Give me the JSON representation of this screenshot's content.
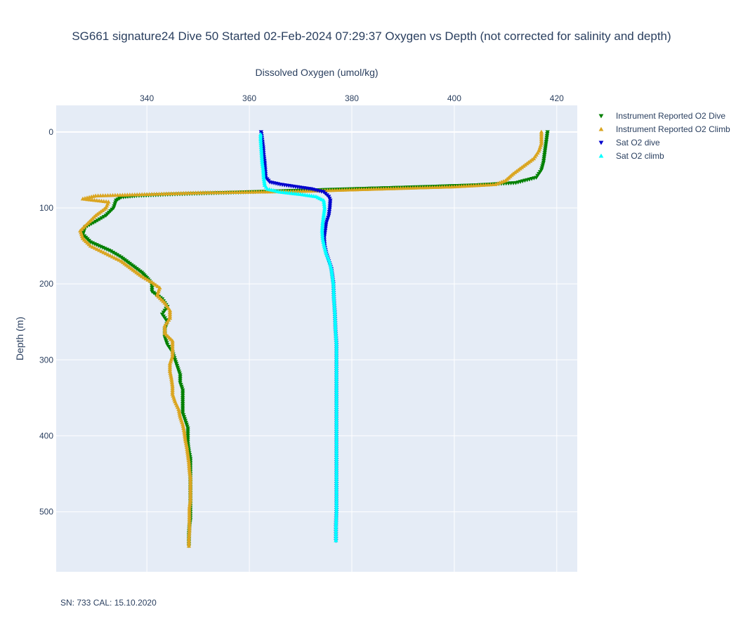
{
  "chart_data": {
    "type": "scatter",
    "title": "SG661 signature24 Dive 50 Started 02-Feb-2024 07:29:37  Oxygen vs Depth (not corrected for salinity and depth)",
    "xlabel": "Dissolved Oxygen (umol/kg)",
    "ylabel": "Depth (m)",
    "xlim": [
      322.3,
      424.0
    ],
    "ylim": [
      579,
      -35
    ],
    "x_axis_position": "top",
    "y_reversed": true,
    "grid": true,
    "x_ticks": [
      340,
      360,
      380,
      400,
      420
    ],
    "y_ticks": [
      0,
      100,
      200,
      300,
      400,
      500
    ],
    "legend_position": "right",
    "series": [
      {
        "name": "Instrument Reported O2 Dive",
        "marker": "triangle-down",
        "color": "#008000",
        "points": [
          [
            418.2,
            0
          ],
          [
            418,
            10
          ],
          [
            417.8,
            20
          ],
          [
            417.6,
            30
          ],
          [
            417.4,
            40
          ],
          [
            417,
            50
          ],
          [
            416,
            60
          ],
          [
            412,
            67
          ],
          [
            404,
            70
          ],
          [
            395,
            72
          ],
          [
            385,
            74
          ],
          [
            375,
            76
          ],
          [
            365,
            78
          ],
          [
            355,
            80
          ],
          [
            345,
            82
          ],
          [
            338,
            84
          ],
          [
            335,
            86
          ],
          [
            334,
            90
          ],
          [
            333.5,
            100
          ],
          [
            332,
            110
          ],
          [
            330,
            118
          ],
          [
            328,
            125
          ],
          [
            327.5,
            135
          ],
          [
            329,
            145
          ],
          [
            333,
            157
          ],
          [
            335,
            165
          ],
          [
            337,
            175
          ],
          [
            339,
            185
          ],
          [
            340,
            192
          ],
          [
            341,
            200
          ],
          [
            341,
            210
          ],
          [
            343,
            220
          ],
          [
            344,
            230
          ],
          [
            343,
            240
          ],
          [
            344,
            250
          ],
          [
            343.5,
            260
          ],
          [
            343.5,
            270
          ],
          [
            344,
            280
          ],
          [
            345,
            290
          ],
          [
            345.5,
            300
          ],
          [
            346,
            310
          ],
          [
            346.5,
            320
          ],
          [
            346.5,
            330
          ],
          [
            347,
            340
          ],
          [
            347,
            350
          ],
          [
            347,
            360
          ],
          [
            347,
            370
          ],
          [
            347.5,
            380
          ],
          [
            348,
            390
          ],
          [
            348,
            400
          ],
          [
            348,
            410
          ],
          [
            348.2,
            420
          ],
          [
            348.5,
            430
          ],
          [
            348.5,
            440
          ],
          [
            348.5,
            450
          ],
          [
            348.5,
            460
          ],
          [
            348.5,
            470
          ],
          [
            348.5,
            480
          ],
          [
            348.5,
            490
          ],
          [
            348.5,
            500
          ],
          [
            348.5,
            510
          ],
          [
            348.3,
            520
          ],
          [
            348.2,
            530
          ],
          [
            348.2,
            540
          ],
          [
            348.2,
            545
          ]
        ]
      },
      {
        "name": "Instrument Reported O2 Climb",
        "marker": "triangle-up",
        "color": "#daa520",
        "points": [
          [
            348.2,
            545
          ],
          [
            348.2,
            535
          ],
          [
            348.3,
            525
          ],
          [
            348.3,
            515
          ],
          [
            348.3,
            505
          ],
          [
            348.3,
            495
          ],
          [
            348.5,
            485
          ],
          [
            348.5,
            475
          ],
          [
            348.5,
            465
          ],
          [
            348.5,
            455
          ],
          [
            348.3,
            445
          ],
          [
            348.2,
            435
          ],
          [
            348,
            425
          ],
          [
            347.8,
            415
          ],
          [
            347.5,
            405
          ],
          [
            347.3,
            395
          ],
          [
            347,
            385
          ],
          [
            346.5,
            375
          ],
          [
            346.2,
            365
          ],
          [
            345.5,
            355
          ],
          [
            345,
            345
          ],
          [
            345,
            335
          ],
          [
            344.8,
            325
          ],
          [
            344.5,
            315
          ],
          [
            344.5,
            305
          ],
          [
            345,
            295
          ],
          [
            345,
            285
          ],
          [
            345,
            275
          ],
          [
            343.5,
            265
          ],
          [
            343.5,
            255
          ],
          [
            344.5,
            245
          ],
          [
            344.5,
            235
          ],
          [
            343.5,
            225
          ],
          [
            342,
            215
          ],
          [
            342.5,
            205
          ],
          [
            341,
            198
          ],
          [
            339,
            190
          ],
          [
            337,
            180
          ],
          [
            335,
            170
          ],
          [
            332,
            160
          ],
          [
            329,
            150
          ],
          [
            327.5,
            140
          ],
          [
            327,
            130
          ],
          [
            328.5,
            120
          ],
          [
            330,
            110
          ],
          [
            332,
            100
          ],
          [
            332.5,
            92
          ],
          [
            327.5,
            88
          ],
          [
            330,
            84
          ],
          [
            340,
            82
          ],
          [
            350,
            80
          ],
          [
            360,
            79
          ],
          [
            370,
            78
          ],
          [
            380,
            76
          ],
          [
            390,
            74
          ],
          [
            400,
            72
          ],
          [
            408,
            69
          ],
          [
            410,
            64
          ],
          [
            411.5,
            55
          ],
          [
            413.5,
            45
          ],
          [
            415.5,
            35
          ],
          [
            416.5,
            25
          ],
          [
            417,
            15
          ],
          [
            417,
            5
          ],
          [
            417,
            0
          ]
        ]
      },
      {
        "name": "Sat O2 dive",
        "marker": "triangle-down",
        "color": "#0000cd",
        "points": [
          [
            362.3,
            0
          ],
          [
            362.5,
            10
          ],
          [
            362.7,
            20
          ],
          [
            362.8,
            30
          ],
          [
            363,
            40
          ],
          [
            363.1,
            50
          ],
          [
            363.2,
            60
          ],
          [
            364,
            66
          ],
          [
            366,
            69
          ],
          [
            369,
            72
          ],
          [
            372,
            75
          ],
          [
            374.5,
            79
          ],
          [
            375.5,
            85
          ],
          [
            375.8,
            90
          ],
          [
            375.7,
            100
          ],
          [
            375.5,
            110
          ],
          [
            375,
            120
          ],
          [
            374.8,
            130
          ],
          [
            374.6,
            140
          ],
          [
            374.7,
            150
          ],
          [
            375,
            160
          ],
          [
            375.5,
            170
          ],
          [
            376,
            180
          ],
          [
            376.2,
            190
          ],
          [
            376.4,
            200
          ],
          [
            376.5,
            220
          ],
          [
            376.7,
            240
          ],
          [
            376.8,
            260
          ],
          [
            377,
            280
          ],
          [
            377,
            300
          ],
          [
            377,
            320
          ],
          [
            377,
            340
          ],
          [
            377,
            360
          ],
          [
            377,
            380
          ],
          [
            377,
            400
          ],
          [
            377,
            420
          ],
          [
            377,
            440
          ],
          [
            377,
            460
          ],
          [
            377,
            480
          ],
          [
            377,
            500
          ],
          [
            376.9,
            520
          ],
          [
            376.9,
            538
          ]
        ]
      },
      {
        "name": "Sat O2 climb",
        "marker": "triangle-up",
        "color": "#00ffff",
        "points": [
          [
            376.9,
            538
          ],
          [
            376.9,
            520
          ],
          [
            377,
            500
          ],
          [
            377,
            480
          ],
          [
            377,
            460
          ],
          [
            377,
            440
          ],
          [
            377,
            420
          ],
          [
            377,
            400
          ],
          [
            377,
            380
          ],
          [
            377,
            360
          ],
          [
            377,
            340
          ],
          [
            377,
            320
          ],
          [
            377,
            300
          ],
          [
            377,
            280
          ],
          [
            376.8,
            260
          ],
          [
            376.7,
            240
          ],
          [
            376.5,
            220
          ],
          [
            376.4,
            200
          ],
          [
            376.2,
            190
          ],
          [
            376,
            180
          ],
          [
            375.6,
            170
          ],
          [
            375,
            160
          ],
          [
            374.6,
            150
          ],
          [
            374.3,
            140
          ],
          [
            374.2,
            130
          ],
          [
            374.3,
            120
          ],
          [
            374.5,
            110
          ],
          [
            374.7,
            100
          ],
          [
            374.5,
            90
          ],
          [
            373,
            85
          ],
          [
            370,
            82
          ],
          [
            366,
            79
          ],
          [
            363.5,
            75
          ],
          [
            363,
            70
          ],
          [
            362.8,
            60
          ],
          [
            362.7,
            50
          ],
          [
            362.5,
            40
          ],
          [
            362.4,
            30
          ],
          [
            362.3,
            20
          ],
          [
            362.2,
            10
          ],
          [
            362.2,
            3
          ]
        ]
      }
    ]
  },
  "footer": {
    "note": "SN: 733  CAL: 15.10.2020"
  }
}
